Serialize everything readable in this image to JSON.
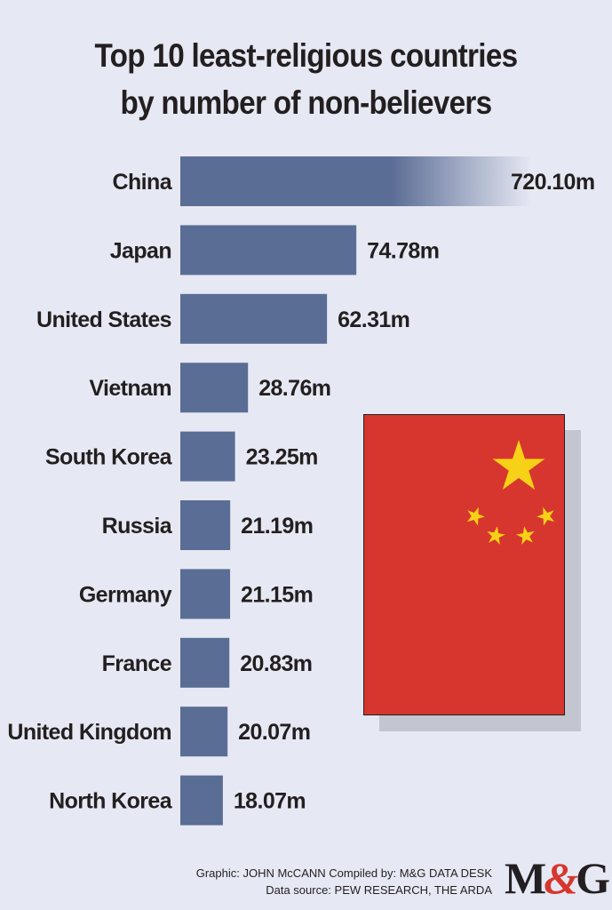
{
  "title": {
    "line1": "Top 10 least-religious countries",
    "line2": "by number of non-believers"
  },
  "chart_data": {
    "type": "bar",
    "orientation": "horizontal",
    "categories": [
      "China",
      "Japan",
      "United States",
      "Vietnam",
      "South Korea",
      "Russia",
      "Germany",
      "France",
      "United Kingdom",
      "North Korea"
    ],
    "values": [
      720.1,
      74.78,
      62.31,
      28.76,
      23.25,
      21.19,
      21.15,
      20.83,
      20.07,
      18.07
    ],
    "value_labels": [
      "720.10m",
      "74.78m",
      "62.31m",
      "28.76m",
      "23.25m",
      "21.19m",
      "21.15m",
      "20.83m",
      "20.07m",
      "18.07m"
    ],
    "units": "m",
    "title": "Top 10 least-religious countries by number of non-believers",
    "xlabel": "",
    "ylabel": "",
    "grid": false,
    "bar_color": "#5a6d95",
    "first_bar_faded": true
  },
  "flag": {
    "field_color": "#d7362e",
    "star_color": "#f7d117"
  },
  "credits": {
    "line1": "Graphic: JOHN McCANN  Compiled by: M&G DATA DESK",
    "line2": "Data source: PEW RESEARCH, THE ARDA"
  },
  "logo": {
    "left": "M",
    "amp": "&",
    "right": "G"
  }
}
